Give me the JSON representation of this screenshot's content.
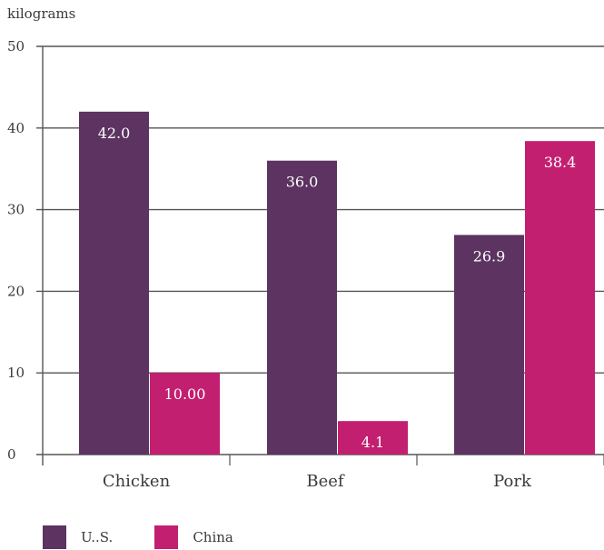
{
  "chart_data": {
    "type": "bar",
    "title": "",
    "xlabel": "",
    "ylabel": "kilograms",
    "categories": [
      "Chicken",
      "Beef",
      "Pork"
    ],
    "series": [
      {
        "name": "U..S.",
        "values": [
          42.0,
          36.0,
          26.9
        ],
        "labels": [
          "42.0",
          "36.0",
          "26.9"
        ],
        "color": "#5c3361"
      },
      {
        "name": "China",
        "values": [
          10.0,
          4.1,
          38.4
        ],
        "labels": [
          "10.00",
          "4.1",
          "38.4"
        ],
        "color": "#c21f71"
      }
    ],
    "ylim": [
      0,
      50
    ],
    "yticks": [
      "0",
      "10",
      "20",
      "30",
      "40",
      "50"
    ],
    "grid": true,
    "legend_position": "bottom-left"
  }
}
